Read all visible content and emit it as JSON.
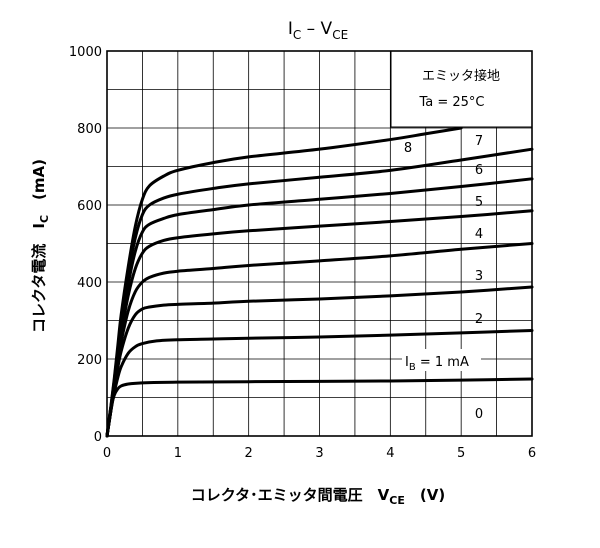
{
  "chart_data": {
    "type": "line",
    "title": {
      "main": "I",
      "sub1": "C",
      "mid": " – V",
      "sub2": "CE"
    },
    "xlabel": {
      "main": "コレクタ･エミッタ間電圧　V",
      "sub": "CE",
      "unit": "　(V)"
    },
    "ylabel": {
      "main": "コレクタ電流　I",
      "sub": "C",
      "unit": "　(mA)"
    },
    "xlim": [
      0,
      6
    ],
    "ylim": [
      0,
      1000
    ],
    "x_ticks": [
      "0",
      "1",
      "2",
      "3",
      "4",
      "5",
      "6"
    ],
    "y_ticks": [
      "0",
      "200",
      "400",
      "600",
      "800",
      "1000"
    ],
    "grid": true,
    "legend_box": {
      "line1": "エミッタ接地",
      "line2": "Ta = 25°C"
    },
    "ib_label": {
      "main": "I",
      "sub": "B",
      "rest": " = 1 mA"
    },
    "series": [
      {
        "label": "0",
        "x": [
          0,
          6
        ],
        "y": [
          0,
          0
        ]
      },
      {
        "label": "1",
        "x": [
          0,
          0.05,
          0.1,
          0.15,
          0.2,
          0.3,
          0.5,
          1,
          2,
          3,
          4,
          5,
          6
        ],
        "y": [
          0,
          70,
          105,
          122,
          130,
          135,
          138,
          140,
          141,
          142,
          143,
          145,
          148
        ]
      },
      {
        "label": "2",
        "x": [
          0,
          0.05,
          0.1,
          0.15,
          0.2,
          0.3,
          0.4,
          0.5,
          0.7,
          1,
          1.5,
          2,
          3,
          4,
          5,
          6
        ],
        "y": [
          0,
          60,
          110,
          150,
          180,
          215,
          232,
          240,
          247,
          250,
          252,
          254,
          257,
          262,
          268,
          274
        ]
      },
      {
        "label": "3",
        "x": [
          0,
          0.05,
          0.1,
          0.15,
          0.2,
          0.3,
          0.4,
          0.5,
          0.6,
          0.8,
          1,
          1.5,
          2,
          3,
          4,
          5,
          6
        ],
        "y": [
          0,
          60,
          120,
          175,
          220,
          280,
          315,
          330,
          335,
          340,
          342,
          345,
          350,
          356,
          364,
          374,
          387
        ]
      },
      {
        "label": "4",
        "x": [
          0,
          0.05,
          0.1,
          0.15,
          0.2,
          0.3,
          0.4,
          0.5,
          0.6,
          0.8,
          1,
          1.5,
          2,
          3,
          4,
          5,
          6
        ],
        "y": [
          0,
          60,
          125,
          190,
          245,
          325,
          375,
          400,
          412,
          423,
          428,
          435,
          443,
          455,
          468,
          485,
          500
        ]
      },
      {
        "label": "5",
        "x": [
          0,
          0.05,
          0.1,
          0.15,
          0.2,
          0.3,
          0.4,
          0.5,
          0.6,
          0.8,
          1,
          1.5,
          2,
          3,
          4,
          5,
          6
        ],
        "y": [
          0,
          62,
          130,
          200,
          265,
          365,
          435,
          475,
          493,
          508,
          515,
          525,
          533,
          545,
          557,
          570,
          585
        ]
      },
      {
        "label": "6",
        "x": [
          0,
          0.05,
          0.1,
          0.15,
          0.2,
          0.3,
          0.4,
          0.5,
          0.6,
          0.8,
          1,
          1.5,
          2,
          3,
          4,
          5,
          6
        ],
        "y": [
          0,
          65,
          135,
          210,
          285,
          395,
          480,
          530,
          550,
          565,
          575,
          588,
          600,
          615,
          630,
          648,
          668
        ]
      },
      {
        "label": "7",
        "x": [
          0,
          0.05,
          0.1,
          0.15,
          0.2,
          0.3,
          0.4,
          0.5,
          0.6,
          0.8,
          1,
          1.5,
          2,
          3,
          4,
          5,
          6
        ],
        "y": [
          0,
          68,
          140,
          220,
          300,
          420,
          515,
          575,
          600,
          618,
          628,
          643,
          655,
          672,
          690,
          717,
          745
        ]
      },
      {
        "label": "8",
        "x": [
          0,
          0.05,
          0.1,
          0.15,
          0.2,
          0.3,
          0.4,
          0.5,
          0.6,
          0.8,
          1,
          1.5,
          2,
          3,
          4,
          4.5,
          5
        ],
        "y": [
          0,
          70,
          145,
          230,
          315,
          440,
          545,
          615,
          650,
          675,
          690,
          710,
          725,
          745,
          770,
          785,
          800
        ]
      }
    ]
  }
}
